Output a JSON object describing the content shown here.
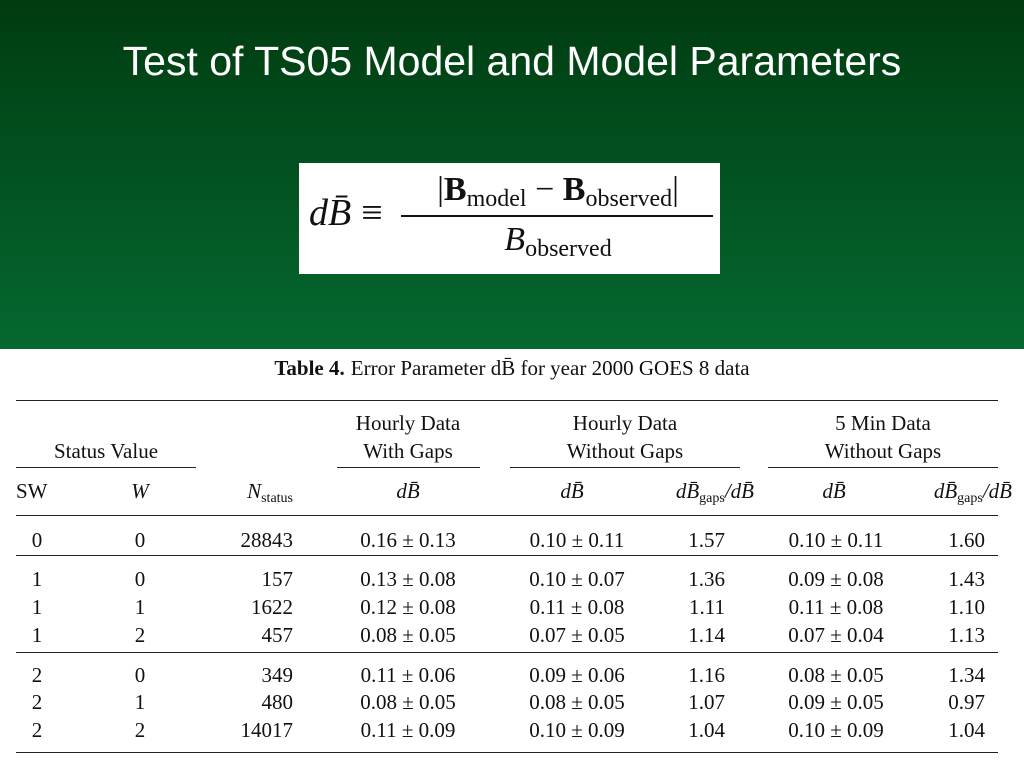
{
  "slide": {
    "title": "Test of TS05 Model and Model Parameters",
    "background_top": "#003c10",
    "background_bottom": "#05682f"
  },
  "formula": {
    "lhs": "dB̄",
    "equiv": "≡",
    "numerator_b1": "B",
    "numerator_sub1": "model",
    "minus": "−",
    "numerator_b2": "B",
    "numerator_sub2": "observed",
    "denominator": "B",
    "denominator_sub": "observed"
  },
  "table": {
    "caption_label": "Table 4.",
    "caption_text": "Error Parameter dB̄ for year 2000 GOES 8 data",
    "group_headers": {
      "status": "Status Value",
      "hourly_gaps_1": "Hourly Data",
      "hourly_gaps_2": "With Gaps",
      "hourly_nogaps_1": "Hourly Data",
      "hourly_nogaps_2": "Without Gaps",
      "min5_1": "5 Min Data",
      "min5_2": "Without Gaps"
    },
    "columns": {
      "sw": "SW",
      "w": "W",
      "n": "N",
      "n_sub": "status",
      "db1": "dB̄",
      "db2": "dB̄",
      "ratio1": "dB̄",
      "ratio1_sub": "gaps",
      "ratio1_tail": "/dB̄",
      "db3": "dB̄",
      "ratio2": "dB̄",
      "ratio2_sub": "gaps",
      "ratio2_tail": "/dB̄"
    },
    "rows": [
      [
        "0",
        "0",
        "28843",
        "0.16 ± 0.13",
        "0.10 ± 0.11",
        "1.57",
        "0.10 ± 0.11",
        "1.60"
      ],
      [
        "1",
        "0",
        "157",
        "0.13 ± 0.08",
        "0.10 ± 0.07",
        "1.36",
        "0.09 ± 0.08",
        "1.43"
      ],
      [
        "1",
        "1",
        "1622",
        "0.12 ± 0.08",
        "0.11 ± 0.08",
        "1.11",
        "0.11 ± 0.08",
        "1.10"
      ],
      [
        "1",
        "2",
        "457",
        "0.08 ± 0.05",
        "0.07 ± 0.05",
        "1.14",
        "0.07 ± 0.04",
        "1.13"
      ],
      [
        "2",
        "0",
        "349",
        "0.11 ± 0.06",
        "0.09 ± 0.06",
        "1.16",
        "0.08 ± 0.05",
        "1.34"
      ],
      [
        "2",
        "1",
        "480",
        "0.08 ± 0.05",
        "0.08 ± 0.05",
        "1.07",
        "0.09 ± 0.05",
        "0.97"
      ],
      [
        "2",
        "2",
        "14017",
        "0.11 ± 0.09",
        "0.10 ± 0.09",
        "1.04",
        "0.10 ± 0.09",
        "1.04"
      ]
    ]
  }
}
